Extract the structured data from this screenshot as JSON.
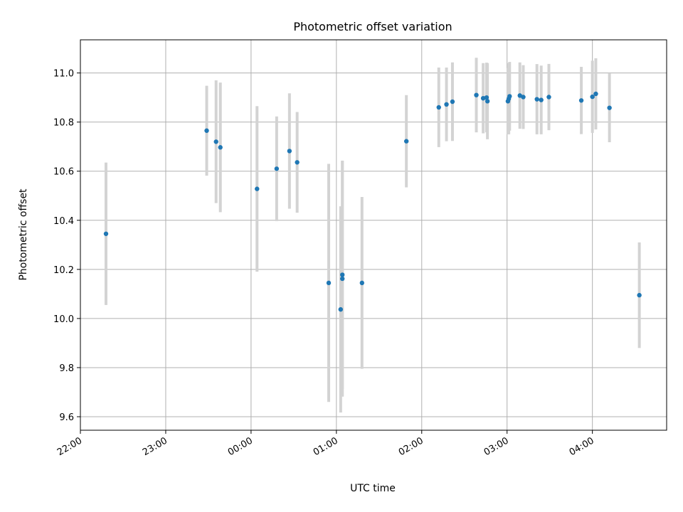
{
  "chart_data": {
    "type": "scatter",
    "title": "Photometric offset variation",
    "xlabel": "UTC time",
    "ylabel": "Photometric offset",
    "x_unit": "UTC time (hours after 00:00; negative = previous day)",
    "xlim": [
      -2.0,
      4.87
    ],
    "ylim": [
      9.545,
      11.135
    ],
    "x_ticks": [
      {
        "value": -2,
        "label": "22:00"
      },
      {
        "value": -1,
        "label": "23:00"
      },
      {
        "value": 0,
        "label": "00:00"
      },
      {
        "value": 1,
        "label": "01:00"
      },
      {
        "value": 2,
        "label": "02:00"
      },
      {
        "value": 3,
        "label": "03:00"
      },
      {
        "value": 4,
        "label": "04:00"
      }
    ],
    "y_ticks": [
      {
        "value": 9.6,
        "label": "9.6"
      },
      {
        "value": 9.8,
        "label": "9.8"
      },
      {
        "value": 10.0,
        "label": "10.0"
      },
      {
        "value": 10.2,
        "label": "10.2"
      },
      {
        "value": 10.4,
        "label": "10.4"
      },
      {
        "value": 10.6,
        "label": "10.6"
      },
      {
        "value": 10.8,
        "label": "10.8"
      },
      {
        "value": 11.0,
        "label": "11.0"
      }
    ],
    "grid": true,
    "marker_color": "#1f77b4",
    "errorbar_color": "#d3d3d3",
    "points": [
      {
        "x": -1.7,
        "y": 10.345,
        "err": 0.29
      },
      {
        "x": -0.52,
        "y": 10.765,
        "err": 0.183
      },
      {
        "x": -0.41,
        "y": 10.72,
        "err": 0.25
      },
      {
        "x": -0.36,
        "y": 10.697,
        "err": 0.264
      },
      {
        "x": 0.07,
        "y": 10.528,
        "err": 0.337
      },
      {
        "x": 0.3,
        "y": 10.61,
        "err": 0.213
      },
      {
        "x": 0.45,
        "y": 10.682,
        "err": 0.235
      },
      {
        "x": 0.54,
        "y": 10.636,
        "err": 0.205
      },
      {
        "x": 0.91,
        "y": 10.145,
        "err": 0.485
      },
      {
        "x": 1.05,
        "y": 10.037,
        "err": 0.42
      },
      {
        "x": 1.07,
        "y": 10.178,
        "err": 0.465
      },
      {
        "x": 1.07,
        "y": 10.162,
        "err": 0.48
      },
      {
        "x": 1.3,
        "y": 10.145,
        "err": 0.35
      },
      {
        "x": 1.82,
        "y": 10.722,
        "err": 0.188
      },
      {
        "x": 2.2,
        "y": 10.86,
        "err": 0.162
      },
      {
        "x": 2.29,
        "y": 10.872,
        "err": 0.15
      },
      {
        "x": 2.36,
        "y": 10.883,
        "err": 0.16
      },
      {
        "x": 2.64,
        "y": 10.91,
        "err": 0.152
      },
      {
        "x": 2.72,
        "y": 10.897,
        "err": 0.143
      },
      {
        "x": 2.76,
        "y": 10.9,
        "err": 0.142
      },
      {
        "x": 2.77,
        "y": 10.885,
        "err": 0.155
      },
      {
        "x": 3.01,
        "y": 10.885,
        "err": 0.135
      },
      {
        "x": 3.02,
        "y": 10.895,
        "err": 0.145
      },
      {
        "x": 3.03,
        "y": 10.905,
        "err": 0.14
      },
      {
        "x": 3.15,
        "y": 10.908,
        "err": 0.135
      },
      {
        "x": 3.19,
        "y": 10.902,
        "err": 0.13
      },
      {
        "x": 3.35,
        "y": 10.893,
        "err": 0.143
      },
      {
        "x": 3.4,
        "y": 10.89,
        "err": 0.14
      },
      {
        "x": 3.49,
        "y": 10.902,
        "err": 0.135
      },
      {
        "x": 3.87,
        "y": 10.888,
        "err": 0.137
      },
      {
        "x": 4.0,
        "y": 10.903,
        "err": 0.147
      },
      {
        "x": 4.04,
        "y": 10.915,
        "err": 0.145
      },
      {
        "x": 4.2,
        "y": 10.858,
        "err": 0.14
      },
      {
        "x": 4.55,
        "y": 10.095,
        "err": 0.215
      }
    ]
  }
}
